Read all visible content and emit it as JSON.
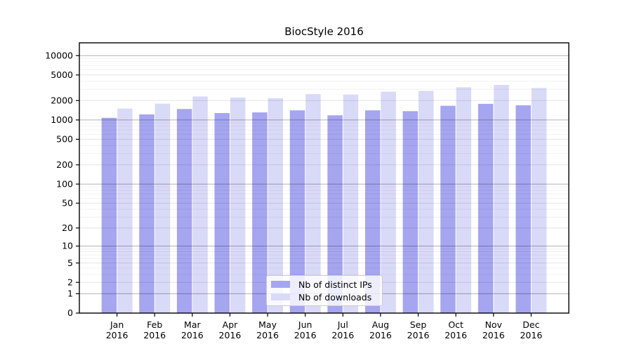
{
  "chart_data": {
    "type": "bar",
    "title": "BiocStyle 2016",
    "categories": [
      "Jan 2016",
      "Feb 2016",
      "Mar 2016",
      "Apr 2016",
      "May 2016",
      "Jun 2016",
      "Jul 2016",
      "Aug 2016",
      "Sep 2016",
      "Oct 2016",
      "Nov 2016",
      "Dec 2016"
    ],
    "series": [
      {
        "name": "Nb of distinct IPs",
        "color": "#a5a5f0",
        "values": [
          1080,
          1220,
          1480,
          1280,
          1310,
          1410,
          1180,
          1410,
          1370,
          1660,
          1780,
          1690
        ]
      },
      {
        "name": "Nb of downloads",
        "color": "#d9d9f8",
        "values": [
          1500,
          1790,
          2320,
          2230,
          2170,
          2520,
          2480,
          2750,
          2830,
          3220,
          3500,
          3130
        ]
      }
    ],
    "xlabel": "",
    "ylabel": "",
    "y_scale": "log1p",
    "y_ticks": [
      0,
      1,
      2,
      5,
      10,
      20,
      50,
      100,
      200,
      500,
      1000,
      2000,
      5000,
      10000
    ],
    "ylim": [
      0,
      15500
    ],
    "grid": true,
    "legend_position": "bottom-center-inside"
  }
}
